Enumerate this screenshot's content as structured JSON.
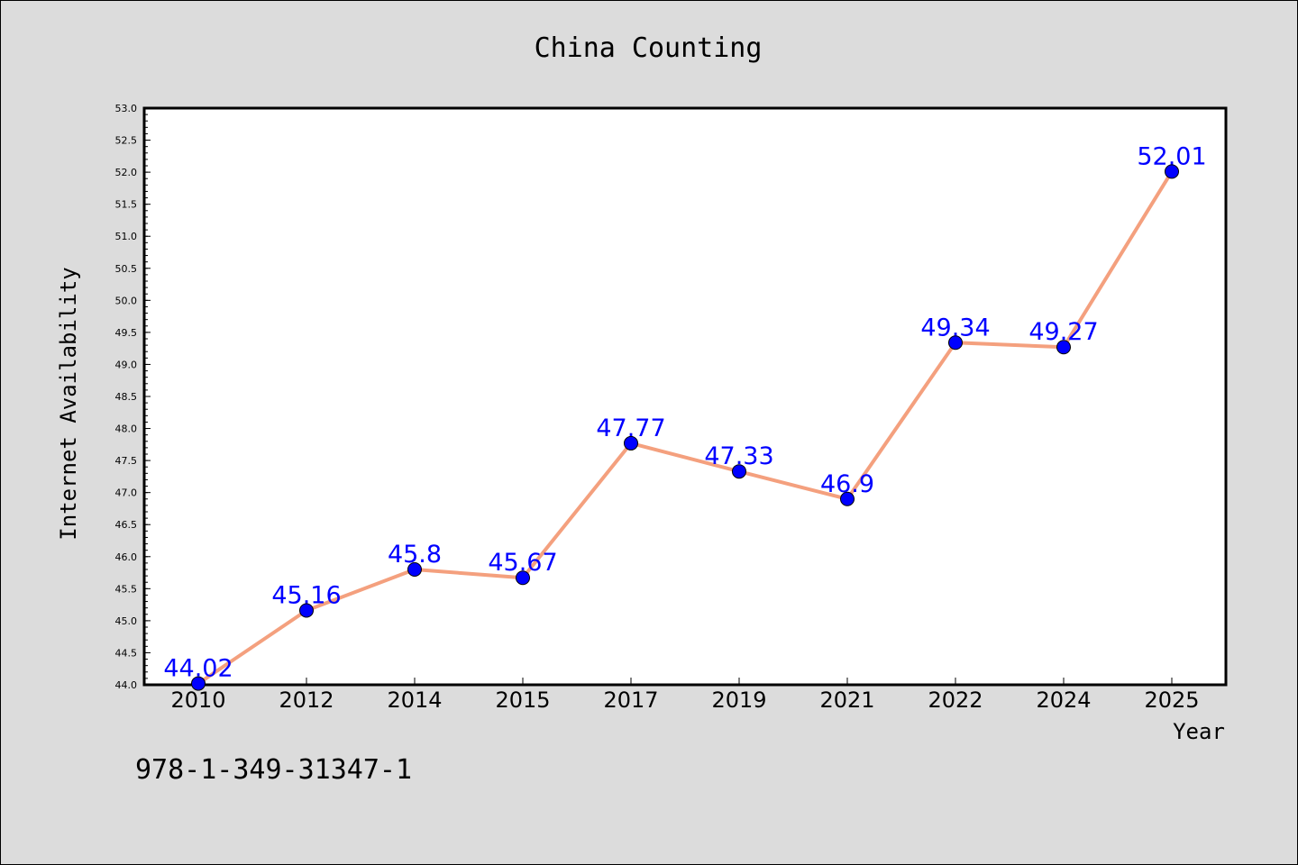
{
  "footer_code": "978-1-349-31347-1",
  "colors": {
    "background": "#dcdcdc",
    "plot_background": "#ffffff",
    "line": "#f4a07e",
    "marker": "#0000ff",
    "data_label": "#0000ff"
  },
  "chart_data": {
    "type": "line",
    "title": "China Counting",
    "xlabel": "Year",
    "ylabel": "Internet Availability",
    "categories": [
      "2010",
      "2012",
      "2014",
      "2015",
      "2017",
      "2019",
      "2021",
      "2022",
      "2024",
      "2025"
    ],
    "series": [
      {
        "values": [
          44.02,
          45.16,
          45.8,
          45.67,
          47.77,
          47.33,
          46.9,
          49.34,
          49.27,
          52.01
        ],
        "data_labels": [
          "44.02",
          "45.16",
          "45.8",
          "45.67",
          "47.77",
          "47.33",
          "46.9",
          "49.34",
          "49.27",
          "52.01"
        ]
      }
    ],
    "ylim": [
      44.0,
      53.0
    ],
    "yticks": [
      "44.0",
      "44.5",
      "45.0",
      "45.5",
      "46.0",
      "46.5",
      "47.0",
      "47.5",
      "48.0",
      "48.5",
      "49.0",
      "49.5",
      "50.0",
      "50.5",
      "51.0",
      "51.5",
      "52.0",
      "52.5",
      "53.0"
    ],
    "grid": false,
    "legend": "none"
  }
}
